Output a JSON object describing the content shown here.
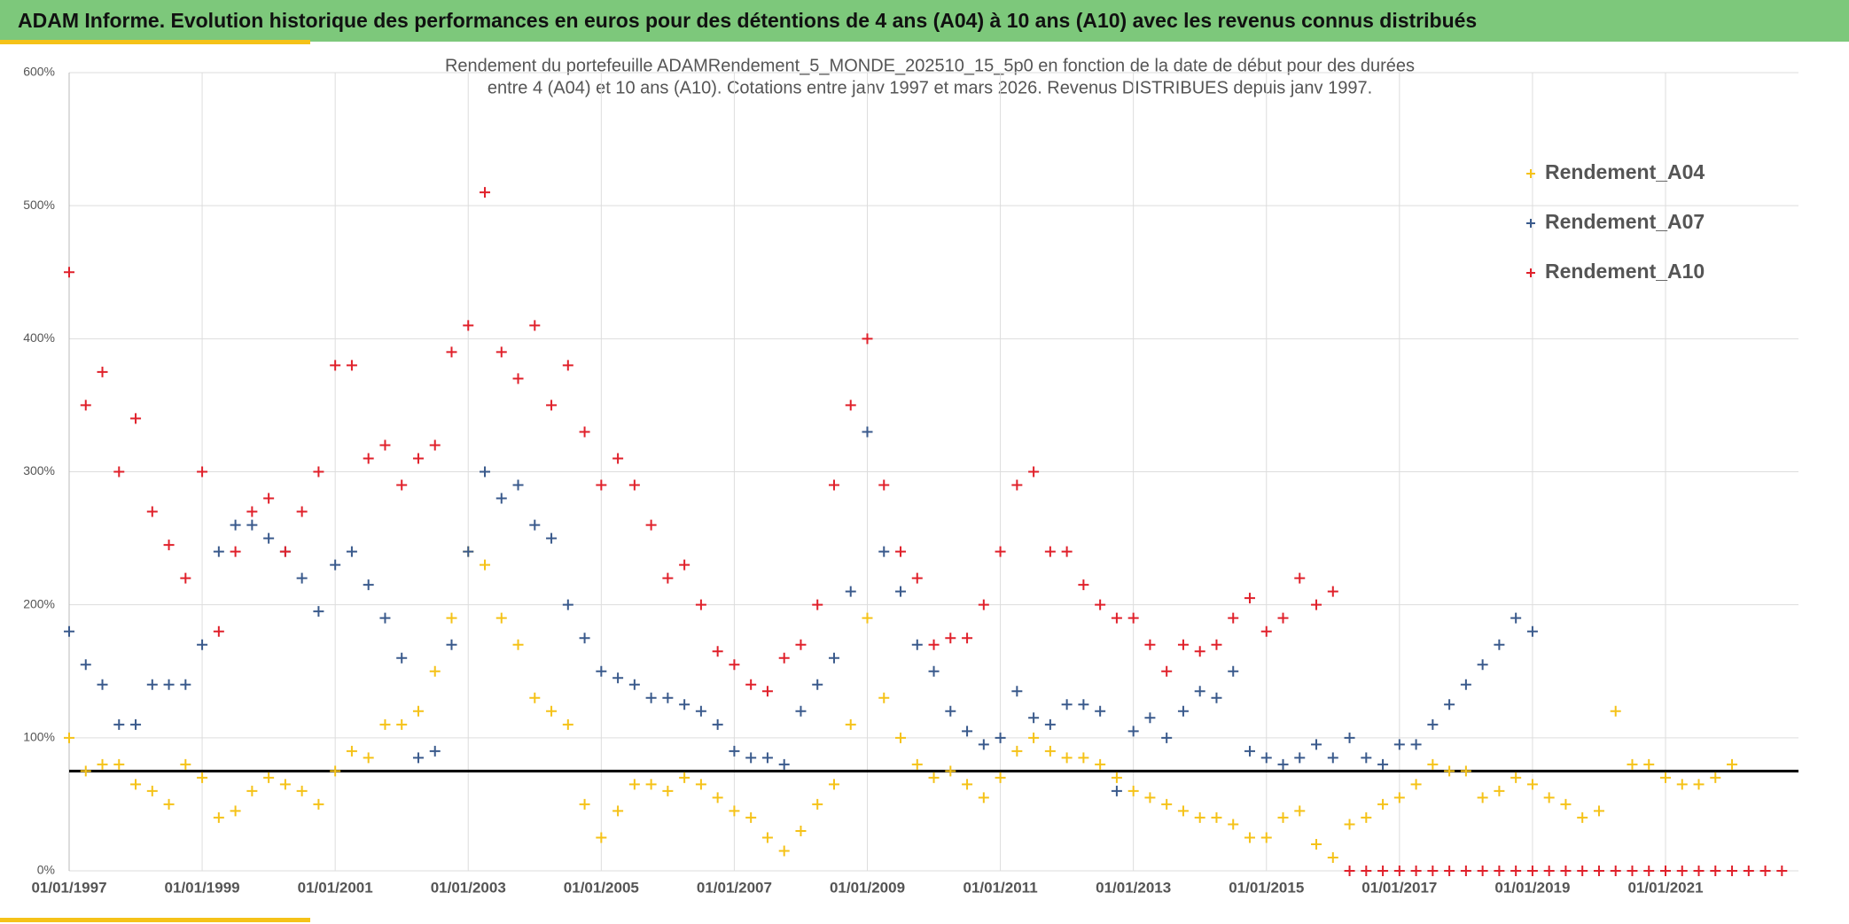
{
  "chart_data": {
    "type": "scatter",
    "header": "ADAM Informe. Evolution historique des performances en euros pour des détentions de 4 ans (A04) à 10 ans (A10) avec les revenus connus distribués",
    "title": "Rendement du portefeuille ADAMRendement_5_MONDE_202510_15_5p0  en fonction de la date de début pour des durées",
    "subtitle": "entre 4 (A04) et 10 ans (A10). Cotations entre janv 1997 et mars 2026. Revenus DISTRIBUES depuis janv 1997.",
    "x": [
      "01/01/1997",
      "01/04/1997",
      "01/07/1997",
      "01/10/1997",
      "01/01/1998",
      "01/04/1998",
      "01/07/1998",
      "01/10/1998",
      "01/01/1999",
      "01/04/1999",
      "01/07/1999",
      "01/10/1999",
      "01/01/2000",
      "01/04/2000",
      "01/07/2000",
      "01/10/2000",
      "01/01/2001",
      "01/04/2001",
      "01/07/2001",
      "01/10/2001",
      "01/01/2002",
      "01/04/2002",
      "01/07/2002",
      "01/10/2002",
      "01/01/2003",
      "01/04/2003",
      "01/07/2003",
      "01/10/2003",
      "01/01/2004",
      "01/04/2004",
      "01/07/2004",
      "01/10/2004",
      "01/01/2005",
      "01/04/2005",
      "01/07/2005",
      "01/10/2005",
      "01/01/2006",
      "01/04/2006",
      "01/07/2006",
      "01/10/2006",
      "01/01/2007",
      "01/04/2007",
      "01/07/2007",
      "01/10/2007",
      "01/01/2008",
      "01/04/2008",
      "01/07/2008",
      "01/10/2008",
      "01/01/2009",
      "01/04/2009",
      "01/07/2009",
      "01/10/2009",
      "01/01/2010",
      "01/04/2010",
      "01/07/2010",
      "01/10/2010",
      "01/01/2011",
      "01/04/2011",
      "01/07/2011",
      "01/10/2011",
      "01/01/2012",
      "01/04/2012",
      "01/07/2012",
      "01/10/2012",
      "01/01/2013",
      "01/04/2013",
      "01/07/2013",
      "01/10/2013",
      "01/01/2014",
      "01/04/2014",
      "01/07/2014",
      "01/10/2014",
      "01/01/2015",
      "01/04/2015",
      "01/07/2015",
      "01/10/2015",
      "01/01/2016",
      "01/04/2016",
      "01/07/2016",
      "01/10/2016",
      "01/01/2017",
      "01/04/2017",
      "01/07/2017",
      "01/10/2017",
      "01/01/2018",
      "01/04/2018",
      "01/07/2018",
      "01/10/2018",
      "01/01/2019",
      "01/04/2019",
      "01/07/2019",
      "01/10/2019",
      "01/01/2020",
      "01/04/2020",
      "01/07/2020",
      "01/10/2020",
      "01/01/2021",
      "01/04/2021",
      "01/07/2021",
      "01/10/2021",
      "01/01/2022",
      "01/04/2022",
      "01/07/2022",
      "01/10/2022"
    ],
    "series": [
      {
        "name": "Rendement_A04",
        "color": "#f5c218",
        "values": [
          100,
          75,
          80,
          80,
          65,
          60,
          50,
          80,
          70,
          40,
          45,
          60,
          70,
          65,
          60,
          50,
          75,
          90,
          85,
          110,
          110,
          120,
          150,
          190,
          240,
          230,
          190,
          170,
          130,
          120,
          110,
          50,
          25,
          45,
          65,
          65,
          60,
          70,
          65,
          55,
          45,
          40,
          25,
          15,
          30,
          50,
          65,
          110,
          190,
          130,
          100,
          80,
          70,
          75,
          65,
          55,
          70,
          90,
          100,
          90,
          85,
          85,
          80,
          70,
          60,
          55,
          50,
          45,
          40,
          40,
          35,
          25,
          25,
          40,
          45,
          20,
          10,
          35,
          40,
          50,
          55,
          65,
          80,
          75,
          75,
          55,
          60,
          70,
          65,
          55,
          50,
          40,
          45,
          120,
          80,
          80,
          70,
          65,
          65,
          70,
          80,
          null,
          null,
          null
        ]
      },
      {
        "name": "Rendement_A07",
        "color": "#3a5a8c",
        "values": [
          180,
          155,
          140,
          110,
          110,
          140,
          140,
          140,
          170,
          240,
          260,
          260,
          250,
          240,
          220,
          195,
          230,
          240,
          215,
          190,
          160,
          85,
          90,
          170,
          240,
          300,
          280,
          290,
          260,
          250,
          200,
          175,
          150,
          145,
          140,
          130,
          130,
          125,
          120,
          110,
          90,
          85,
          85,
          80,
          120,
          140,
          160,
          210,
          330,
          240,
          210,
          170,
          150,
          120,
          105,
          95,
          100,
          135,
          115,
          110,
          125,
          125,
          120,
          60,
          105,
          115,
          100,
          120,
          135,
          130,
          150,
          90,
          85,
          80,
          85,
          95,
          85,
          100,
          85,
          80,
          95,
          95,
          110,
          125,
          140,
          155,
          170,
          190,
          180,
          null,
          null,
          null,
          null,
          null,
          null,
          null,
          null,
          null,
          null,
          null,
          null,
          null,
          null,
          null
        ]
      },
      {
        "name": "Rendement_A10",
        "color": "#e0212b",
        "values": [
          450,
          350,
          375,
          300,
          340,
          270,
          245,
          220,
          300,
          180,
          240,
          270,
          280,
          240,
          270,
          300,
          380,
          380,
          310,
          320,
          290,
          310,
          320,
          390,
          410,
          510,
          390,
          370,
          410,
          350,
          380,
          330,
          290,
          310,
          290,
          260,
          220,
          230,
          200,
          165,
          155,
          140,
          135,
          160,
          170,
          200,
          290,
          350,
          400,
          290,
          240,
          220,
          170,
          175,
          175,
          200,
          240,
          290,
          300,
          240,
          240,
          215,
          200,
          190,
          190,
          170,
          150,
          170,
          165,
          170,
          190,
          205,
          180,
          190,
          220,
          200,
          210,
          0,
          0,
          0,
          0,
          0,
          0,
          0,
          0,
          0,
          0,
          0,
          0,
          0,
          0,
          0,
          0,
          0,
          0,
          0,
          0,
          0,
          0,
          0,
          0,
          0,
          0,
          0
        ]
      }
    ],
    "reference_line": 75,
    "xlim": [
      "01/01/1997",
      "31/12/2022"
    ],
    "xticks": [
      "01/01/1997",
      "01/01/1999",
      "01/01/2001",
      "01/01/2003",
      "01/01/2005",
      "01/01/2007",
      "01/01/2009",
      "01/01/2011",
      "01/01/2013",
      "01/01/2015",
      "01/01/2017",
      "01/01/2019",
      "01/01/2021"
    ],
    "ylim": [
      0,
      600
    ],
    "yticks": [
      {
        "value": 0,
        "label": "0%"
      },
      {
        "value": 100,
        "label": "100%"
      },
      {
        "value": 200,
        "label": "200%"
      },
      {
        "value": 300,
        "label": "300%"
      },
      {
        "value": 400,
        "label": "400%"
      },
      {
        "value": 500,
        "label": "500%"
      },
      {
        "value": 600,
        "label": "600%"
      }
    ],
    "grid": true,
    "legend": "upper right"
  }
}
